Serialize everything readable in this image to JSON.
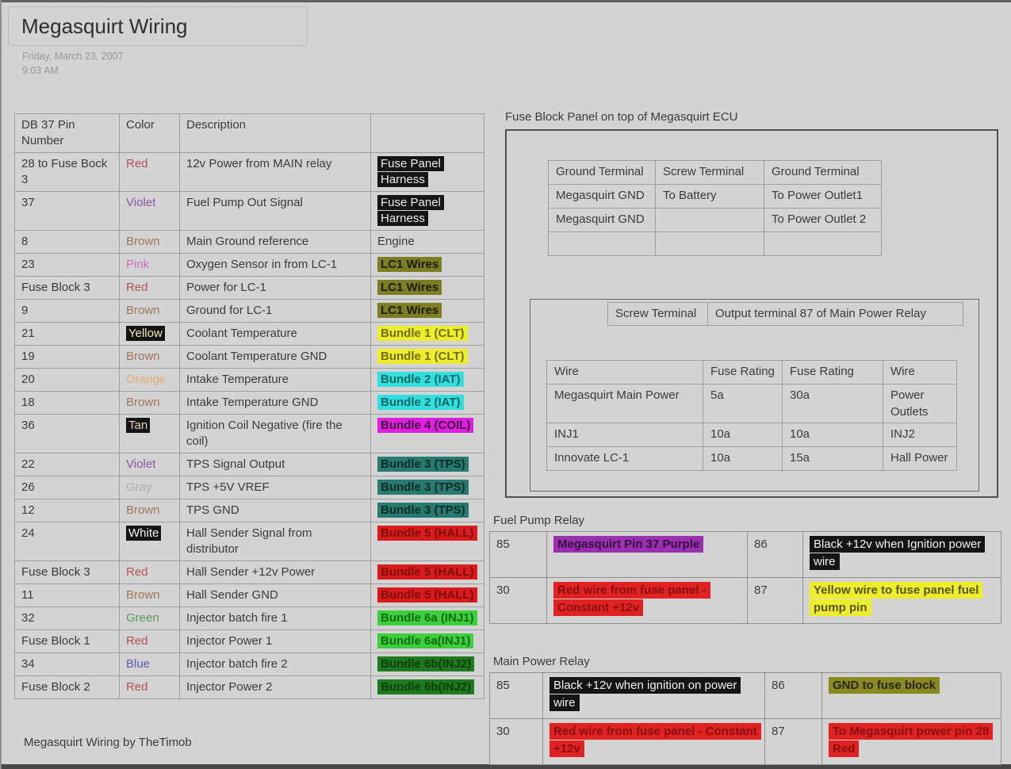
{
  "page": {
    "title": "Megasquirt Wiring",
    "date": "Friday, March 23, 2007",
    "time": "9:03 AM",
    "footer": "Megasquirt Wiring by TheTimob"
  },
  "pin_table": {
    "headers": [
      "DB 37 Pin Number",
      "Color",
      "Description",
      ""
    ],
    "rows": [
      {
        "pin": "28 to Fuse Bock 3",
        "color": "Red",
        "color_style": "red",
        "description": "12v Power from MAIN relay",
        "tag": "Fuse Panel Harness",
        "tag_style": "black"
      },
      {
        "pin": "37",
        "color": "Violet",
        "color_style": "violet",
        "description": "Fuel Pump Out Signal",
        "tag": "Fuse Panel Harness",
        "tag_style": "black"
      },
      {
        "pin": "8",
        "color": "Brown",
        "color_style": "brown",
        "description": "Main Ground reference",
        "tag": "Engine",
        "tag_style": "plain"
      },
      {
        "pin": "23",
        "color": "Pink",
        "color_style": "pink",
        "description": "Oxygen Sensor in from LC-1",
        "tag": "LC1 Wires",
        "tag_style": "olive"
      },
      {
        "pin": "Fuse Block 3",
        "color": "Red",
        "color_style": "red",
        "description": "Power for LC-1",
        "tag": "LC1 Wires",
        "tag_style": "olive"
      },
      {
        "pin": "9",
        "color": "Brown",
        "color_style": "brown",
        "description": "Ground for LC-1",
        "tag": "LC1 Wires",
        "tag_style": "olive"
      },
      {
        "pin": "21",
        "color": "Yellow",
        "color_style": "yellow-chip",
        "description": "Coolant Temperature",
        "tag": "Bundle 1 (CLT)",
        "tag_style": "yellow"
      },
      {
        "pin": "19",
        "color": "Brown",
        "color_style": "brown",
        "description": "Coolant Temperature GND",
        "tag": "Bundle 1 (CLT)",
        "tag_style": "yellow"
      },
      {
        "pin": "20",
        "color": "Orange",
        "color_style": "orange",
        "description": "Intake Temperature",
        "tag": "Bundle 2 (IAT)",
        "tag_style": "cyan"
      },
      {
        "pin": "18",
        "color": "Brown",
        "color_style": "brown",
        "description": "Intake Temperature GND",
        "tag": "Bundle 2 (IAT)",
        "tag_style": "cyan"
      },
      {
        "pin": "36",
        "color": "Tan",
        "color_style": "tan-chip",
        "description": "Ignition Coil Negative (fire the coil)",
        "tag": "Bundle 4 (COIL)",
        "tag_style": "magenta"
      },
      {
        "pin": "22",
        "color": "Violet",
        "color_style": "violet",
        "description": "TPS Signal Output",
        "tag": "Bundle 3 (TPS)",
        "tag_style": "teal"
      },
      {
        "pin": "26",
        "color": "Gray",
        "color_style": "gray",
        "description": "TPS +5V VREF",
        "tag": "Bundle 3 (TPS)",
        "tag_style": "teal"
      },
      {
        "pin": "12",
        "color": "Brown",
        "color_style": "brown",
        "description": "TPS GND",
        "tag": "Bundle 3 (TPS)",
        "tag_style": "teal"
      },
      {
        "pin": "24",
        "color": "White",
        "color_style": "white-chip",
        "description": "Hall Sender Signal from distributor",
        "tag": "Bundle 5 (HALL)",
        "tag_style": "red"
      },
      {
        "pin": "Fuse Block 3",
        "color": "Red",
        "color_style": "red",
        "description": "Hall Sender +12v Power",
        "tag": "Bundle 5 (HALL)",
        "tag_style": "red"
      },
      {
        "pin": "11",
        "color": "Brown",
        "color_style": "brown",
        "description": "Hall Sender GND",
        "tag": "Bundle 5 (HALL)",
        "tag_style": "red"
      },
      {
        "pin": "32",
        "color": "Green",
        "color_style": "green",
        "description": "Injector batch fire 1",
        "tag": "Bundle 6a (INJ1)",
        "tag_style": "green"
      },
      {
        "pin": "Fuse Block 1",
        "color": "Red",
        "color_style": "red",
        "description": "Injector Power 1",
        "tag": "Bundle 6a(INJ1)",
        "tag_style": "green"
      },
      {
        "pin": "34",
        "color": "Blue",
        "color_style": "blue",
        "description": "Injector batch fire 2",
        "tag": "Bundle 6b(INJ2)",
        "tag_style": "darkgreen"
      },
      {
        "pin": "Fuse Block 2",
        "color": "Red",
        "color_style": "red",
        "description": "Injector Power 2",
        "tag": "Bundle 6b(INJ2)",
        "tag_style": "darkgreen"
      }
    ]
  },
  "fuse_block_panel": {
    "title": "Fuse Block Panel on top of Megasquirt ECU",
    "terminal_table": [
      [
        "Ground Terminal",
        "Screw Terminal",
        "Ground Terminal"
      ],
      [
        "Megasquirt GND",
        "To Battery",
        "To Power Outlet1"
      ],
      [
        "Megasquirt GND",
        "",
        "To Power Outlet 2"
      ],
      [
        "",
        "",
        ""
      ]
    ],
    "screw_terminal_table": [
      "Screw Terminal",
      "Output terminal 87 of Main Power Relay"
    ],
    "fuse_table": {
      "headers": [
        "Wire",
        "Fuse Rating",
        "Fuse Rating",
        "Wire"
      ],
      "rows": [
        [
          "Megasquirt Main Power",
          "5a",
          "30a",
          "Power Outlets"
        ],
        [
          "INJ1",
          "10a",
          "10a",
          "INJ2"
        ],
        [
          "Innovate LC-1",
          "10a",
          "15a",
          "Hall Power"
        ]
      ]
    }
  },
  "fuel_pump_relay": {
    "title": "Fuel Pump Relay",
    "rows": [
      {
        "pin_left": "85",
        "left": "Megasquirt Pin 37 Purple",
        "left_style": "purple",
        "pin_right": "86",
        "right": "Black +12v when Ignition power wire",
        "right_style": "black"
      },
      {
        "pin_left": "30",
        "left": "Red wire from fuse panel - Constant +12v",
        "left_style": "red",
        "pin_right": "87",
        "right": "Yellow wire to fuse panel fuel pump pin",
        "right_style": "yellow"
      }
    ]
  },
  "main_power_relay": {
    "title": "Main Power Relay",
    "rows": [
      {
        "pin_left": "85",
        "left": "Black +12v when ignition on power wire",
        "left_style": "black",
        "pin_right": "86",
        "right": "GND to fuse block",
        "right_style": "olive"
      },
      {
        "pin_left": "30",
        "left": "Red wire from fuse panel - Constant +12v",
        "left_style": "red",
        "pin_right": "87",
        "right": "To Megasquirt power pin 28 Red",
        "right_style": "red"
      }
    ]
  },
  "palette": {
    "page_bg": "#d3d3d3",
    "text": "#3b3b3b",
    "muted_text": "#979797",
    "table_border": "#9d9d9d",
    "highlight_black": "#161616",
    "highlight_olive": "#7d7d22",
    "highlight_yellow": "#eded2b",
    "highlight_cyan": "#32dfdf",
    "highlight_magenta": "#df1edf",
    "highlight_teal": "#267a6e",
    "highlight_red": "#d91b1b",
    "highlight_green": "#3ecf3e",
    "highlight_darkgreen": "#1e7a1e",
    "highlight_purple": "#9a30b0"
  }
}
